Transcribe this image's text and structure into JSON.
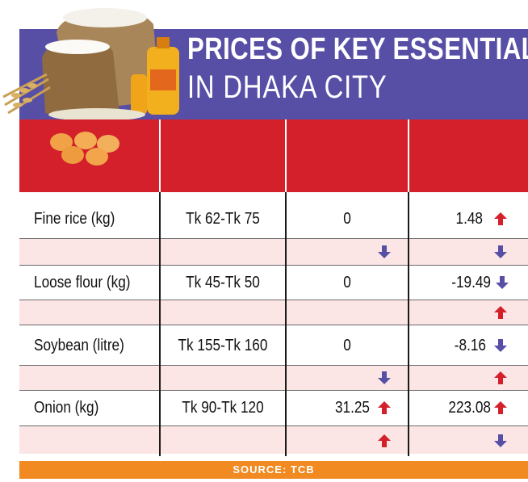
{
  "header": {
    "title_line1": "PRICES OF KEY ESSENTIALS",
    "title_line2": "IN DHAKA CITY"
  },
  "colors": {
    "header_bg": "#574ea6",
    "column_band": "#d4202b",
    "stripe": "#fce5e5",
    "up_arrow": "#d4202b",
    "down_arrow": "#574ea6",
    "source_bg": "#f08a21"
  },
  "chart_data": {
    "type": "table",
    "rows": [
      {
        "item": "Fine rice (kg)",
        "price": "Tk 62-Tk 75",
        "change_a": "0",
        "change_a_arrow": "none",
        "change_b": "1.48",
        "change_b_arrow": "up",
        "stripe_arrow_a": "down",
        "stripe_arrow_b": "down"
      },
      {
        "item": "Loose flour (kg)",
        "price": "Tk 45-Tk 50",
        "change_a": "0",
        "change_a_arrow": "none",
        "change_b": "-19.49",
        "change_b_arrow": "down",
        "stripe_arrow_a": "none",
        "stripe_arrow_b": "up"
      },
      {
        "item": "Soybean (litre)",
        "price": "Tk 155-Tk 160",
        "change_a": "0",
        "change_a_arrow": "none",
        "change_b": "-8.16",
        "change_b_arrow": "down",
        "stripe_arrow_a": "down",
        "stripe_arrow_b": "up"
      },
      {
        "item": "Onion (kg)",
        "price": "Tk 90-Tk 120",
        "change_a": "31.25",
        "change_a_arrow": "up",
        "change_b": "223.08",
        "change_b_arrow": "up",
        "stripe_arrow_a": "up",
        "stripe_arrow_b": "down"
      }
    ]
  },
  "footer": {
    "source": "SOURCE: TCB"
  }
}
